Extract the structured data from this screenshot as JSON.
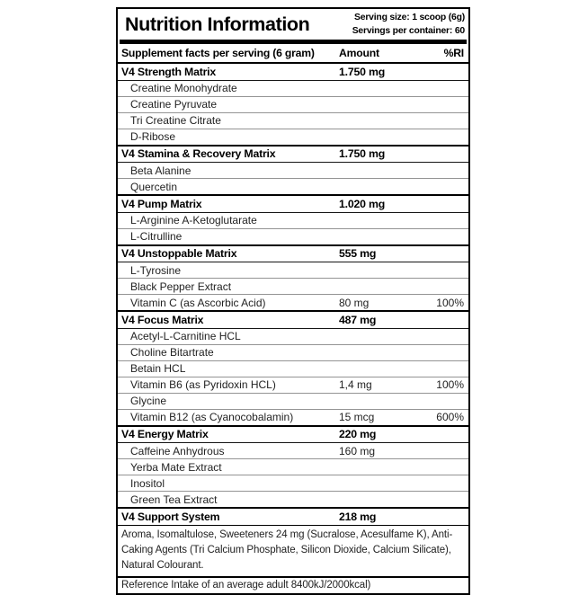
{
  "label": {
    "title": "Nutrition Information",
    "serving_size": "Serving size: 1 scoop (6g)",
    "servings_per_container": "Servings per container: 60",
    "columns": {
      "facts": "Supplement facts per serving (6 gram)",
      "amount": "Amount",
      "ri": "%RI"
    },
    "rows": [
      {
        "type": "matrix",
        "name": "V4 Strength Matrix",
        "amount": "1.750 mg",
        "ri": ""
      },
      {
        "type": "ingredient",
        "name": "Creatine Monohydrate",
        "amount": "",
        "ri": ""
      },
      {
        "type": "ingredient",
        "name": "Creatine Pyruvate",
        "amount": "",
        "ri": ""
      },
      {
        "type": "ingredient",
        "name": "Tri Creatine Citrate",
        "amount": "",
        "ri": ""
      },
      {
        "type": "ingredient",
        "name": "D-Ribose",
        "amount": "",
        "ri": ""
      },
      {
        "type": "matrix",
        "name": "V4 Stamina & Recovery Matrix",
        "amount": "1.750 mg",
        "ri": ""
      },
      {
        "type": "ingredient",
        "name": "Beta Alanine",
        "amount": "",
        "ri": ""
      },
      {
        "type": "ingredient",
        "name": "Quercetin",
        "amount": "",
        "ri": ""
      },
      {
        "type": "matrix",
        "name": "V4 Pump Matrix",
        "amount": "1.020 mg",
        "ri": ""
      },
      {
        "type": "ingredient",
        "name": "L-Arginine A-Ketoglutarate",
        "amount": "",
        "ri": ""
      },
      {
        "type": "ingredient",
        "name": "L-Citrulline",
        "amount": "",
        "ri": ""
      },
      {
        "type": "matrix",
        "name": "V4 Unstoppable Matrix",
        "amount": "555 mg",
        "ri": ""
      },
      {
        "type": "ingredient",
        "name": "L-Tyrosine",
        "amount": "",
        "ri": ""
      },
      {
        "type": "ingredient",
        "name": "Black Pepper Extract",
        "amount": "",
        "ri": ""
      },
      {
        "type": "ingredient",
        "name": "Vitamin C (as Ascorbic Acid)",
        "amount": "80 mg",
        "ri": "100%"
      },
      {
        "type": "matrix",
        "name": "V4 Focus Matrix",
        "amount": "487 mg",
        "ri": ""
      },
      {
        "type": "ingredient",
        "name": "Acetyl-L-Carnitine HCL",
        "amount": "",
        "ri": ""
      },
      {
        "type": "ingredient",
        "name": "Choline Bitartrate",
        "amount": "",
        "ri": ""
      },
      {
        "type": "ingredient",
        "name": "Betain HCL",
        "amount": "",
        "ri": ""
      },
      {
        "type": "ingredient",
        "name": "Vitamin B6 (as Pyridoxin HCL)",
        "amount": "1,4 mg",
        "ri": "100%"
      },
      {
        "type": "ingredient",
        "name": "Glycine",
        "amount": "",
        "ri": ""
      },
      {
        "type": "ingredient",
        "name": "Vitamin B12 (as Cyanocobalamin)",
        "amount": "15 mcg",
        "ri": "600%"
      },
      {
        "type": "matrix",
        "name": "V4 Energy Matrix",
        "amount": "220 mg",
        "ri": ""
      },
      {
        "type": "ingredient",
        "name": "Caffeine Anhydrous",
        "amount": "160 mg",
        "ri": ""
      },
      {
        "type": "ingredient",
        "name": "Yerba Mate Extract",
        "amount": "",
        "ri": ""
      },
      {
        "type": "ingredient",
        "name": "Inositol",
        "amount": "",
        "ri": ""
      },
      {
        "type": "ingredient",
        "name": "Green Tea Extract",
        "amount": "",
        "ri": ""
      },
      {
        "type": "matrix",
        "name": "V4 Support System",
        "amount": "218 mg",
        "ri": ""
      }
    ],
    "footnote": "Aroma, Isomaltulose, Sweeteners 24 mg (Sucralose, Acesulfame K), Anti-Caking Agents (Tri Calcium Phosphate, Silicon Dioxide, Calcium Silicate), Natural Colourant.",
    "reference": "Reference Intake of an average adult 8400kJ/2000kcal)"
  },
  "colors": {
    "background": "#ffffff",
    "border_black": "#000000",
    "separator_gray": "#949494",
    "text_primary": "#000000",
    "text_secondary": "#222222"
  }
}
